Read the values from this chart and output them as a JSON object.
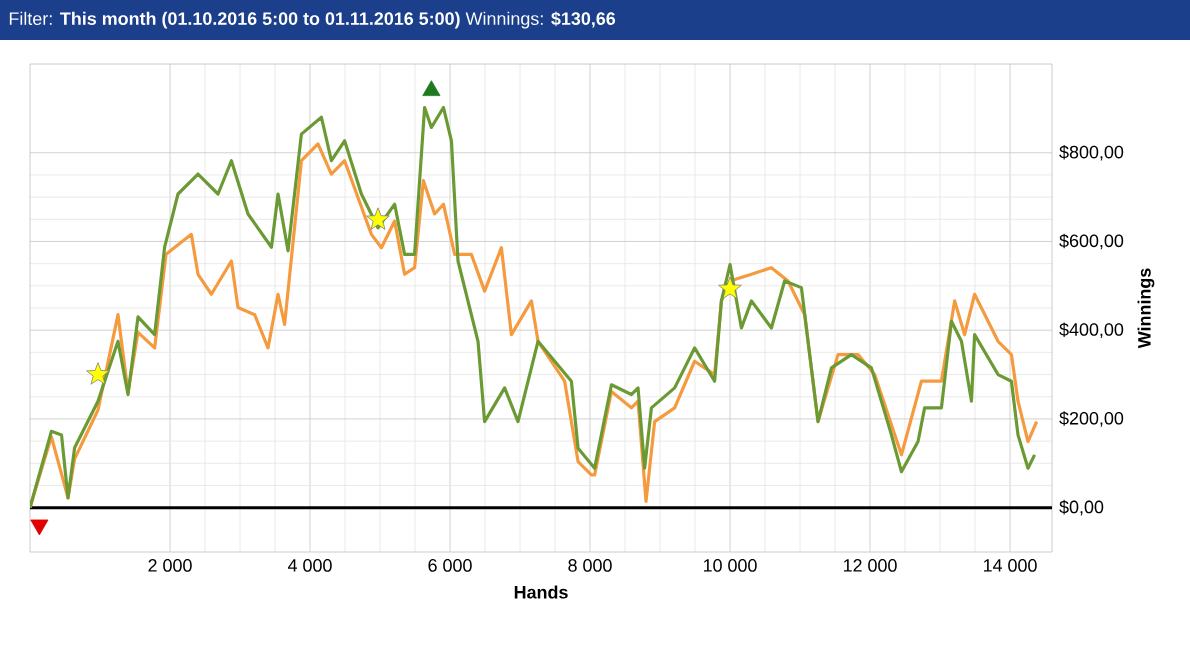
{
  "chart_data": {
    "type": "line",
    "title": "Filter: **This month (01.10.2016 5:00 to 01.11.2016 5:00)** Winnings: **$130,66**",
    "xlabel": "Hands",
    "ylabel": "Winnings",
    "xlim": [
      0,
      14600
    ],
    "ylim": [
      -100,
      1000
    ],
    "xticks": [
      {
        "value": 2000,
        "label": "2 000"
      },
      {
        "value": 4000,
        "label": "4 000"
      },
      {
        "value": 6000,
        "label": "6 000"
      },
      {
        "value": 8000,
        "label": "8 000"
      },
      {
        "value": 10000,
        "label": "10 000"
      },
      {
        "value": 12000,
        "label": "12 000"
      },
      {
        "value": 14000,
        "label": "14 000"
      }
    ],
    "yticks": [
      {
        "value": 0,
        "label": "$0,00"
      },
      {
        "value": 200,
        "label": "$200,00"
      },
      {
        "value": 400,
        "label": "$400,00"
      },
      {
        "value": 600,
        "label": "$600,00"
      },
      {
        "value": 800,
        "label": "$800,00"
      }
    ],
    "grid": true,
    "ref_lines": [
      {
        "axis": "y",
        "value": 0,
        "color": "#000000"
      }
    ],
    "series": [
      {
        "color": "#f59a3e",
        "marker": "none",
        "x": [
          0,
          305,
          543,
          637,
          971,
          1257,
          1400,
          1543,
          1780,
          1943,
          2305,
          2400,
          2591,
          2877,
          2971,
          3209,
          3400,
          3543,
          3637,
          3877,
          4114,
          4305,
          4494,
          4877,
          5020,
          5209,
          5351,
          5494,
          5620,
          5780,
          5906,
          6066,
          6305,
          6494,
          6734,
          6877,
          7163,
          7257,
          7637,
          7829,
          8020,
          8066,
          8306,
          8591,
          8686,
          8800,
          8923,
          9209,
          9494,
          9780,
          9877,
          10000,
          10306,
          10591,
          10829,
          11066,
          11257,
          11543,
          11829,
          12066,
          12449,
          12734,
          13020,
          13209,
          13351,
          13494,
          13829,
          14020,
          14114,
          14257,
          14380
        ],
        "values": [
          0,
          160,
          22,
          110,
          220,
          435,
          260,
          395,
          360,
          571,
          616,
          526,
          481,
          556,
          451,
          435,
          360,
          481,
          413,
          782,
          820,
          752,
          782,
          616,
          586,
          646,
          526,
          541,
          737,
          662,
          684,
          571,
          571,
          488,
          586,
          390,
          466,
          375,
          285,
          104,
          74,
          74,
          262,
          225,
          240,
          14,
          194,
          225,
          330,
          300,
          466,
          511,
          526,
          541,
          511,
          435,
          194,
          345,
          345,
          300,
          119,
          285,
          285,
          466,
          390,
          481,
          375,
          345,
          240,
          149,
          194
        ]
      },
      {
        "color": "#6b9a35",
        "marker": "none",
        "x": [
          0,
          305,
          450,
          543,
          637,
          971,
          1257,
          1400,
          1543,
          1780,
          1923,
          2114,
          2400,
          2686,
          2877,
          3114,
          3449,
          3543,
          3686,
          3877,
          4163,
          4305,
          4494,
          4734,
          4971,
          5209,
          5351,
          5494,
          5637,
          5734,
          5906,
          6020,
          6114,
          6400,
          6494,
          6780,
          6971,
          7257,
          7734,
          7829,
          8066,
          8306,
          8591,
          8686,
          8780,
          8877,
          9209,
          9494,
          9780,
          9877,
          10000,
          10163,
          10306,
          10591,
          10780,
          11020,
          11257,
          11449,
          11734,
          12020,
          12306,
          12449,
          12686,
          12780,
          13020,
          13163,
          13306,
          13449,
          13494,
          13829,
          14020,
          14114,
          14257,
          14351
        ],
        "values": [
          0,
          172,
          164,
          22,
          135,
          240,
          375,
          255,
          430,
          390,
          587,
          707,
          752,
          707,
          782,
          662,
          587,
          707,
          579,
          842,
          880,
          782,
          827,
          707,
          631,
          684,
          571,
          571,
          902,
          857,
          902,
          827,
          556,
          375,
          194,
          270,
          194,
          375,
          285,
          134,
          89,
          277,
          255,
          270,
          89,
          225,
          270,
          360,
          285,
          466,
          548,
          405,
          466,
          405,
          511,
          496,
          194,
          315,
          345,
          315,
          164,
          81,
          149,
          225,
          225,
          420,
          375,
          240,
          390,
          300,
          285,
          164,
          89,
          119
        ]
      },
      {
        "type": "scatter",
        "color": "#ffff00",
        "marker": "star",
        "x": [
          971,
          4971,
          10000
        ],
        "values": [
          300,
          649,
          493
        ]
      },
      {
        "type": "scatter",
        "color": "#1e7a1e",
        "marker": "triangle",
        "x": [
          5734
        ],
        "values": [
          940
        ]
      },
      {
        "type": "scatter",
        "color": "#e00000",
        "marker": "triangle-down",
        "x": [
          134
        ],
        "values": [
          -39
        ]
      }
    ]
  }
}
